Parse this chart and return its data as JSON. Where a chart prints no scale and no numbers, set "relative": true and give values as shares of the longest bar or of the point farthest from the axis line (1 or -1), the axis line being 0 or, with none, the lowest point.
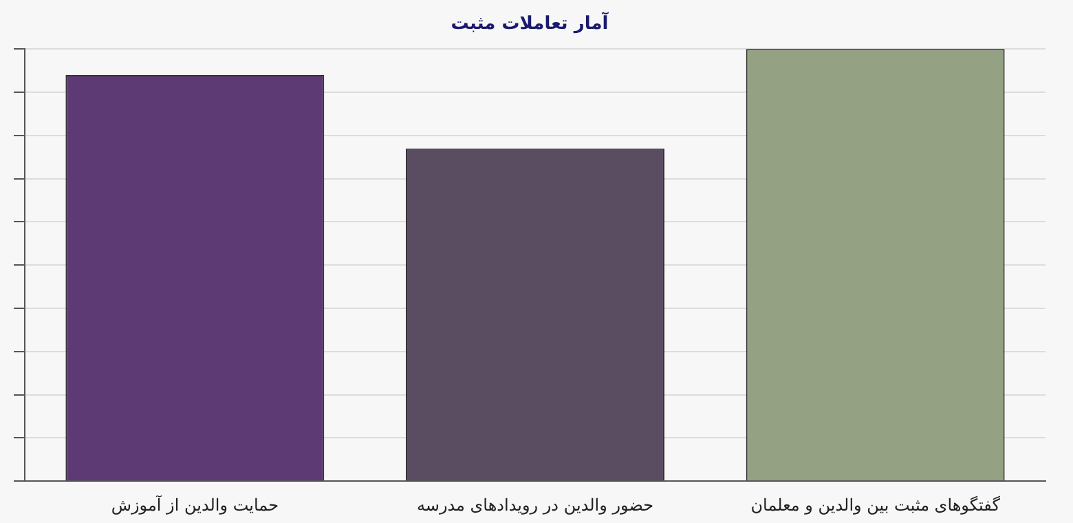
{
  "chart_data": {
    "type": "bar",
    "title": "آمار تعاملات مثبت",
    "categories": [
      "حمایت والدین از آموزش",
      "حضور والدین در رویدادهای مدرسه",
      "گفتگوهای مثبت بین والدین و معلمان"
    ],
    "values": [
      0.94,
      0.77,
      1
    ],
    "colors": [
      "#5e3a74",
      "#5a4d62",
      "#94a283"
    ],
    "relative": true,
    "grid": "y",
    "legend": false
  }
}
